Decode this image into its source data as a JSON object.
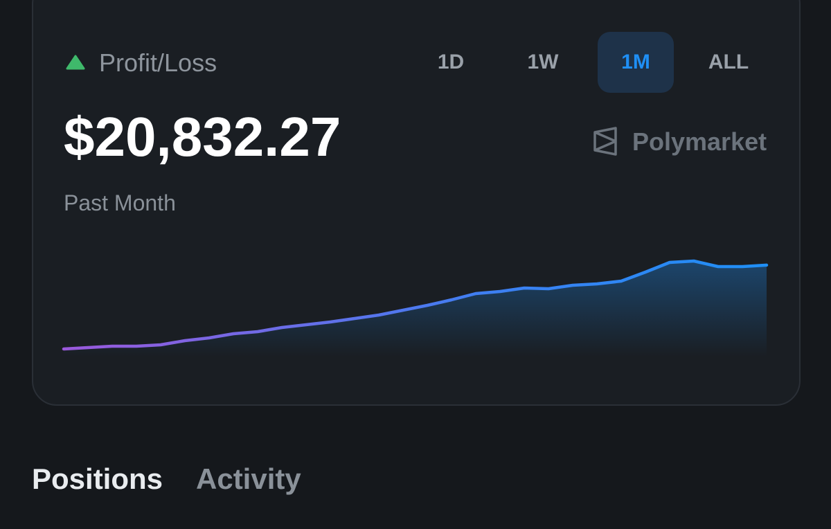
{
  "header": {
    "label": "Profit/Loss",
    "amount": "$20,832.27",
    "period": "Past Month",
    "brand": "Polymarket"
  },
  "tabs": [
    "1D",
    "1W",
    "1M",
    "ALL"
  ],
  "selected_tab": 2,
  "chart_data": {
    "type": "line",
    "color": "#1f8ff5",
    "values": [
      0,
      344,
      688,
      688,
      1032,
      2064,
      2752,
      3784,
      4300,
      5332,
      6020,
      6708,
      7568,
      8428,
      9632,
      10836,
      12212,
      13760,
      14276,
      15136,
      14964,
      15824,
      16168,
      16856,
      19092,
      21500,
      21844,
      20468,
      20468,
      20832.27
    ]
  },
  "sections": [
    "Positions",
    "Activity"
  ],
  "selected_section": 0
}
